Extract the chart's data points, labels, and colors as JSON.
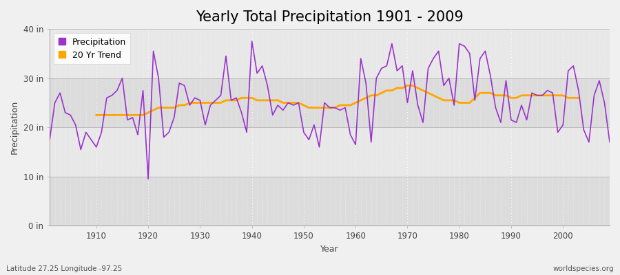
{
  "title": "Yearly Total Precipitation 1901 - 2009",
  "xlabel": "Year",
  "ylabel": "Precipitation",
  "footnote_left": "Latitude 27.25 Longitude -97.25",
  "footnote_right": "worldspecies.org",
  "years": [
    1901,
    1902,
    1903,
    1904,
    1905,
    1906,
    1907,
    1908,
    1909,
    1910,
    1911,
    1912,
    1913,
    1914,
    1915,
    1916,
    1917,
    1918,
    1919,
    1920,
    1921,
    1922,
    1923,
    1924,
    1925,
    1926,
    1927,
    1928,
    1929,
    1930,
    1931,
    1932,
    1933,
    1934,
    1935,
    1936,
    1937,
    1938,
    1939,
    1940,
    1941,
    1942,
    1943,
    1944,
    1945,
    1946,
    1947,
    1948,
    1949,
    1950,
    1951,
    1952,
    1953,
    1954,
    1955,
    1956,
    1957,
    1958,
    1959,
    1960,
    1961,
    1962,
    1963,
    1964,
    1965,
    1966,
    1967,
    1968,
    1969,
    1970,
    1971,
    1972,
    1973,
    1974,
    1975,
    1976,
    1977,
    1978,
    1979,
    1980,
    1981,
    1982,
    1983,
    1984,
    1985,
    1986,
    1987,
    1988,
    1989,
    1990,
    1991,
    1992,
    1993,
    1994,
    1995,
    1996,
    1997,
    1998,
    1999,
    2000,
    2001,
    2002,
    2003,
    2004,
    2005,
    2006,
    2007,
    2008,
    2009
  ],
  "precip": [
    17.5,
    25.0,
    27.0,
    23.0,
    22.5,
    20.5,
    15.5,
    19.0,
    17.5,
    16.0,
    19.0,
    26.0,
    26.5,
    27.5,
    30.0,
    21.5,
    22.0,
    18.5,
    27.5,
    9.5,
    35.5,
    30.0,
    18.0,
    19.0,
    22.0,
    29.0,
    28.5,
    24.5,
    26.0,
    25.5,
    20.5,
    24.5,
    25.5,
    26.5,
    34.5,
    25.5,
    26.0,
    23.0,
    19.0,
    37.5,
    31.0,
    32.5,
    28.5,
    22.5,
    24.5,
    23.5,
    25.0,
    24.5,
    25.0,
    19.0,
    17.5,
    20.5,
    16.0,
    25.0,
    24.0,
    24.0,
    23.5,
    24.0,
    18.5,
    16.5,
    34.0,
    29.0,
    17.0,
    30.0,
    32.0,
    32.5,
    37.0,
    31.5,
    32.5,
    25.0,
    31.5,
    24.5,
    21.0,
    32.0,
    34.0,
    35.5,
    28.5,
    30.0,
    24.5,
    37.0,
    36.5,
    35.0,
    25.5,
    34.0,
    35.5,
    30.5,
    24.0,
    21.0,
    29.5,
    21.5,
    21.0,
    24.5,
    21.5,
    27.0,
    26.5,
    26.5,
    27.5,
    27.0,
    19.0,
    20.5,
    31.5,
    32.5,
    27.5,
    19.5,
    17.0,
    26.5,
    29.5,
    25.0,
    17.0
  ],
  "trend": [
    null,
    null,
    null,
    null,
    null,
    null,
    null,
    null,
    null,
    22.5,
    22.5,
    22.5,
    22.5,
    22.5,
    22.5,
    22.5,
    22.5,
    22.5,
    22.5,
    23.0,
    23.5,
    24.0,
    24.0,
    24.0,
    24.0,
    24.5,
    24.5,
    25.0,
    25.0,
    25.0,
    25.0,
    25.0,
    25.0,
    25.0,
    25.5,
    25.5,
    25.5,
    26.0,
    26.0,
    26.0,
    25.5,
    25.5,
    25.5,
    25.5,
    25.5,
    25.0,
    25.0,
    25.0,
    25.0,
    24.5,
    24.0,
    24.0,
    24.0,
    24.0,
    24.0,
    24.0,
    24.5,
    24.5,
    24.5,
    25.0,
    25.5,
    26.0,
    26.5,
    26.5,
    27.0,
    27.5,
    27.5,
    28.0,
    28.0,
    28.5,
    28.5,
    28.0,
    27.5,
    27.0,
    26.5,
    26.0,
    25.5,
    25.5,
    25.5,
    25.0,
    25.0,
    25.0,
    26.0,
    27.0,
    27.0,
    27.0,
    26.5,
    26.5,
    26.5,
    26.0,
    26.0,
    26.5,
    26.5,
    26.5,
    26.5,
    26.5,
    26.5,
    26.5,
    26.5,
    26.5,
    26.0,
    26.0,
    26.0,
    null,
    null,
    null,
    null,
    null,
    null
  ],
  "precip_color": "#9933CC",
  "trend_color": "#FFA500",
  "fig_bg_color": "#F0F0F0",
  "plot_bg_color": "#E8E8E8",
  "band_color": "#DCDCDC",
  "ylim": [
    0,
    40
  ],
  "yticks": [
    0,
    10,
    20,
    30,
    40
  ],
  "ytick_labels": [
    "0 in",
    "10 in",
    "20 in",
    "30 in",
    "40 in"
  ],
  "title_fontsize": 15,
  "axis_fontsize": 9,
  "tick_fontsize": 8.5
}
